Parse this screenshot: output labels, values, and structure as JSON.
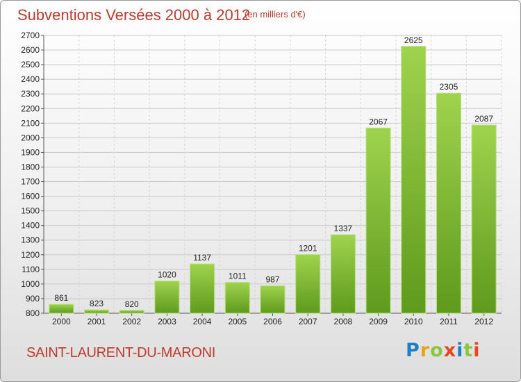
{
  "header": {
    "title": "Subventions Versées 2000 à 2012",
    "subtitle": "(en milliers d'€)"
  },
  "footer": {
    "location": "SAINT-LAURENT-DU-MARONI",
    "logo_text": "Proxiti"
  },
  "colors": {
    "title": "#c0392b",
    "bar_top": "#9fd34e",
    "bar_bottom": "#5e9a1c",
    "logo_letters": [
      "#1d7fc4",
      "#e8a317",
      "#8cc63f",
      "#e8471c",
      "#1d7fc4",
      "#8cc63f",
      "#e8471c"
    ]
  },
  "chart_data": {
    "type": "bar",
    "categories": [
      "2000",
      "2001",
      "2002",
      "2003",
      "2004",
      "2005",
      "2006",
      "2007",
      "2008",
      "2009",
      "2010",
      "2011",
      "2012"
    ],
    "values": [
      861,
      823,
      820,
      1020,
      1137,
      1011,
      987,
      1201,
      1337,
      2067,
      2625,
      2305,
      2087
    ],
    "ylim": [
      800,
      2700
    ],
    "ytick_step": 100,
    "grid": true,
    "legend": "none"
  }
}
